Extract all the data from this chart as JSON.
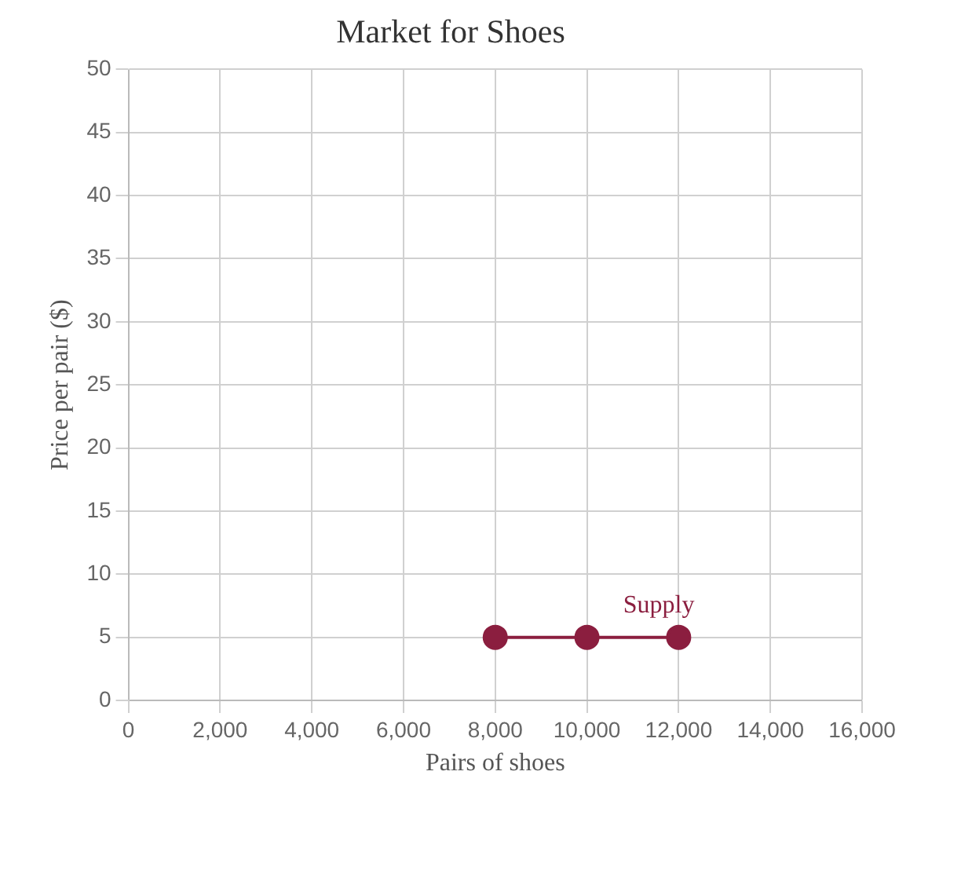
{
  "chart_data": {
    "type": "line",
    "title": "Market for Shoes",
    "xlabel": "Pairs of shoes",
    "ylabel": "Price per pair ($)",
    "x": [
      8000,
      10000,
      12000
    ],
    "series": [
      {
        "name": "Supply",
        "color": "#8b1e3f",
        "values": [
          5,
          5,
          5
        ]
      }
    ],
    "xlim": [
      0,
      16000
    ],
    "xticks": [
      0,
      {
        "value": 2000,
        "label": "2,000"
      },
      {
        "value": 4000,
        "label": "4,000"
      },
      {
        "value": 6000,
        "label": "6,000"
      },
      {
        "value": 8000,
        "label": "8,000"
      },
      {
        "value": 10000,
        "label": "10,000"
      },
      {
        "value": 12000,
        "label": "12,000"
      },
      {
        "value": 14000,
        "label": "14,000"
      },
      {
        "value": 16000,
        "label": "16,000"
      }
    ],
    "ylim": [
      0,
      50
    ],
    "yticks": [
      0,
      5,
      10,
      15,
      20,
      25,
      30,
      35,
      40,
      45,
      50
    ],
    "grid": true,
    "legend": false,
    "marker": "circle",
    "line_style": "solid"
  }
}
